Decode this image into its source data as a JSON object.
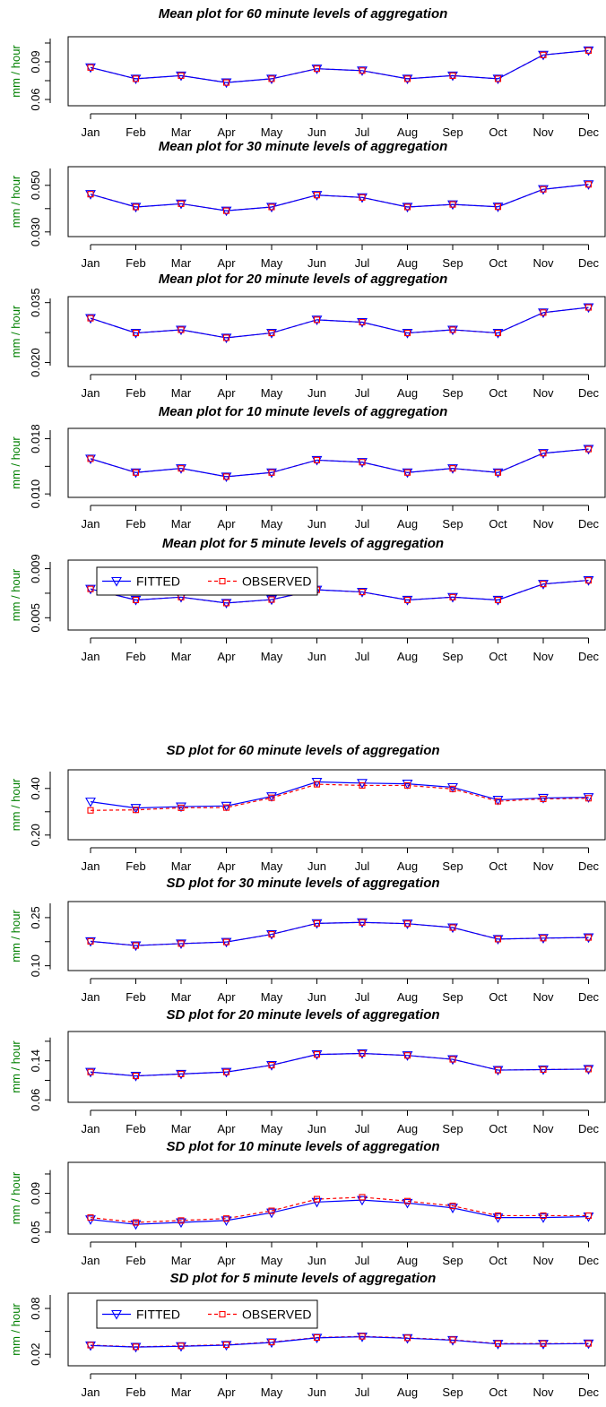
{
  "chart_data": [
    {
      "type": "line",
      "title": "Mean plot for 60 minute levels of aggregation",
      "ylabel": "mm / hour",
      "categories": [
        "Jan",
        "Feb",
        "Mar",
        "Apr",
        "May",
        "Jun",
        "Jul",
        "Aug",
        "Sep",
        "Oct",
        "Nov",
        "Dec"
      ],
      "ylim": [
        0.055,
        0.11
      ],
      "yticks": [
        "0.06",
        "0.09"
      ],
      "ytick_values": [
        0.06,
        0.09
      ],
      "series": [
        {
          "name": "FITTED",
          "values": [
            0.0855,
            0.0765,
            0.079,
            0.0735,
            0.0765,
            0.0845,
            0.083,
            0.0765,
            0.079,
            0.0765,
            0.0955,
            0.099
          ]
        },
        {
          "name": "OBSERVED",
          "values": [
            0.0855,
            0.0765,
            0.079,
            0.0735,
            0.0765,
            0.0845,
            0.083,
            0.0765,
            0.079,
            0.0765,
            0.0955,
            0.099
          ]
        }
      ]
    },
    {
      "type": "line",
      "title": "Mean plot for 30 minute levels of aggregation",
      "ylabel": "mm / hour",
      "categories": [
        "Jan",
        "Feb",
        "Mar",
        "Apr",
        "May",
        "Jun",
        "Jul",
        "Aug",
        "Sep",
        "Oct",
        "Nov",
        "Dec"
      ],
      "ylim": [
        0.028,
        0.058
      ],
      "yticks": [
        "0.030",
        "0.050"
      ],
      "ytick_values": [
        0.03,
        0.05
      ],
      "series": [
        {
          "name": "FITTED",
          "values": [
            0.0462,
            0.0407,
            0.0421,
            0.0391,
            0.0407,
            0.0458,
            0.0448,
            0.0407,
            0.0418,
            0.0408,
            0.0483,
            0.0504
          ]
        },
        {
          "name": "OBSERVED",
          "values": [
            0.0462,
            0.0407,
            0.0421,
            0.0391,
            0.0407,
            0.0458,
            0.0448,
            0.0407,
            0.0418,
            0.0408,
            0.0483,
            0.0504
          ]
        }
      ]
    },
    {
      "type": "line",
      "title": "Mean plot for 20 minute levels of aggregation",
      "ylabel": "mm / hour",
      "categories": [
        "Jan",
        "Feb",
        "Mar",
        "Apr",
        "May",
        "Jun",
        "Jul",
        "Aug",
        "Sep",
        "Oct",
        "Nov",
        "Dec"
      ],
      "ylim": [
        0.019,
        0.0365
      ],
      "yticks": [
        "0.020",
        "0.035"
      ],
      "ytick_values": [
        0.02,
        0.035
      ],
      "series": [
        {
          "name": "FITTED",
          "values": [
            0.0311,
            0.0274,
            0.0282,
            0.0262,
            0.0274,
            0.0307,
            0.0301,
            0.0274,
            0.0282,
            0.0274,
            0.0325,
            0.0338
          ]
        },
        {
          "name": "OBSERVED",
          "values": [
            0.0311,
            0.0274,
            0.0282,
            0.0262,
            0.0274,
            0.0307,
            0.0301,
            0.0274,
            0.0282,
            0.0274,
            0.0325,
            0.0338
          ]
        }
      ]
    },
    {
      "type": "line",
      "title": "Mean plot for 10 minute levels of aggregation",
      "ylabel": "mm / hour",
      "categories": [
        "Jan",
        "Feb",
        "Mar",
        "Apr",
        "May",
        "Jun",
        "Jul",
        "Aug",
        "Sep",
        "Oct",
        "Nov",
        "Dec"
      ],
      "ylim": [
        0.0095,
        0.0195
      ],
      "yticks": [
        "0.010",
        "0.018"
      ],
      "ytick_values": [
        0.01,
        0.018
      ],
      "series": [
        {
          "name": "FITTED",
          "values": [
            0.0151,
            0.0131,
            0.0137,
            0.0125,
            0.0131,
            0.0149,
            0.0146,
            0.0131,
            0.0137,
            0.0131,
            0.0159,
            0.0165
          ]
        },
        {
          "name": "OBSERVED",
          "values": [
            0.0151,
            0.0131,
            0.0137,
            0.0125,
            0.0131,
            0.0149,
            0.0146,
            0.0131,
            0.0137,
            0.0131,
            0.0159,
            0.0165
          ]
        }
      ]
    },
    {
      "type": "line",
      "title": "Mean plot for 5 minute levels of aggregation",
      "ylabel": "mm / hour",
      "categories": [
        "Jan",
        "Feb",
        "Mar",
        "Apr",
        "May",
        "Jun",
        "Jul",
        "Aug",
        "Sep",
        "Oct",
        "Nov",
        "Dec"
      ],
      "ylim": [
        0.004,
        0.0097
      ],
      "yticks": [
        "0.005",
        "0.009"
      ],
      "ytick_values": [
        0.005,
        0.009
      ],
      "legend": "top-left",
      "series": [
        {
          "name": "FITTED",
          "values": [
            0.00735,
            0.00645,
            0.00668,
            0.0062,
            0.00648,
            0.00728,
            0.0071,
            0.00645,
            0.00668,
            0.00645,
            0.00775,
            0.00805
          ]
        },
        {
          "name": "OBSERVED",
          "values": [
            0.00735,
            0.00645,
            0.00668,
            0.0062,
            0.00648,
            0.00728,
            0.0071,
            0.00645,
            0.00668,
            0.00645,
            0.00775,
            0.00805
          ]
        }
      ]
    },
    {
      "type": "line",
      "title": "SD plot for 60 minute levels of aggregation",
      "ylabel": "mm / hour",
      "categories": [
        "Jan",
        "Feb",
        "Mar",
        "Apr",
        "May",
        "Jun",
        "Jul",
        "Aug",
        "Sep",
        "Oct",
        "Nov",
        "Dec"
      ],
      "ylim": [
        0.18,
        0.48
      ],
      "yticks": [
        "0.20",
        "0.40"
      ],
      "ytick_values": [
        0.2,
        0.4
      ],
      "series": [
        {
          "name": "FITTED",
          "values": [
            0.343,
            0.316,
            0.322,
            0.325,
            0.366,
            0.428,
            0.423,
            0.42,
            0.405,
            0.351,
            0.359,
            0.362
          ]
        },
        {
          "name": "OBSERVED",
          "values": [
            0.306,
            0.308,
            0.317,
            0.318,
            0.36,
            0.418,
            0.413,
            0.413,
            0.398,
            0.345,
            0.355,
            0.358
          ]
        }
      ]
    },
    {
      "type": "line",
      "title": "SD plot for 30 minute levels of aggregation",
      "ylabel": "mm / hour",
      "categories": [
        "Jan",
        "Feb",
        "Mar",
        "Apr",
        "May",
        "Jun",
        "Jul",
        "Aug",
        "Sep",
        "Oct",
        "Nov",
        "Dec"
      ],
      "ylim": [
        0.085,
        0.3
      ],
      "yticks": [
        "0.10",
        "0.25"
      ],
      "ytick_values": [
        0.1,
        0.25
      ],
      "series": [
        {
          "name": "FITTED",
          "values": [
            0.176,
            0.163,
            0.169,
            0.174,
            0.198,
            0.232,
            0.235,
            0.231,
            0.219,
            0.183,
            0.186,
            0.188
          ]
        },
        {
          "name": "OBSERVED",
          "values": [
            0.176,
            0.163,
            0.169,
            0.174,
            0.198,
            0.232,
            0.235,
            0.231,
            0.219,
            0.183,
            0.186,
            0.188
          ]
        }
      ]
    },
    {
      "type": "line",
      "title": "SD plot for 20 minute levels of aggregation",
      "ylabel": "mm / hour",
      "categories": [
        "Jan",
        "Feb",
        "Mar",
        "Apr",
        "May",
        "Jun",
        "Jul",
        "Aug",
        "Sep",
        "Oct",
        "Nov",
        "Dec"
      ],
      "ylim": [
        0.055,
        0.2
      ],
      "yticks": [
        "0.06",
        "0.14"
      ],
      "ytick_values": [
        0.06,
        0.14
      ],
      "series": [
        {
          "name": "FITTED",
          "values": [
            0.117,
            0.109,
            0.113,
            0.117,
            0.131,
            0.153,
            0.155,
            0.151,
            0.143,
            0.121,
            0.122,
            0.123
          ]
        },
        {
          "name": "OBSERVED",
          "values": [
            0.117,
            0.109,
            0.113,
            0.117,
            0.131,
            0.153,
            0.155,
            0.151,
            0.143,
            0.121,
            0.122,
            0.123
          ]
        }
      ]
    },
    {
      "type": "line",
      "title": "SD plot for 10 minute levels of aggregation",
      "ylabel": "mm / hour",
      "categories": [
        "Jan",
        "Feb",
        "Mar",
        "Apr",
        "May",
        "Jun",
        "Jul",
        "Aug",
        "Sep",
        "Oct",
        "Nov",
        "Dec"
      ],
      "ylim": [
        0.048,
        0.122
      ],
      "yticks": [
        "0.05",
        "0.09"
      ],
      "ytick_values": [
        0.05,
        0.09
      ],
      "series": [
        {
          "name": "FITTED",
          "values": [
            0.063,
            0.058,
            0.06,
            0.062,
            0.07,
            0.081,
            0.083,
            0.08,
            0.075,
            0.065,
            0.065,
            0.066
          ]
        },
        {
          "name": "OBSERVED",
          "values": [
            0.065,
            0.06,
            0.062,
            0.064,
            0.072,
            0.084,
            0.086,
            0.082,
            0.077,
            0.067,
            0.067,
            0.067
          ]
        }
      ]
    },
    {
      "type": "line",
      "title": "SD plot for 5 minute levels of aggregation",
      "ylabel": "mm / hour",
      "categories": [
        "Jan",
        "Feb",
        "Mar",
        "Apr",
        "May",
        "Jun",
        "Jul",
        "Aug",
        "Sep",
        "Oct",
        "Nov",
        "Dec"
      ],
      "ylim": [
        0.005,
        0.1
      ],
      "yticks": [
        "0.02",
        "0.08"
      ],
      "ytick_values": [
        0.02,
        0.08
      ],
      "legend": "top-left",
      "series": [
        {
          "name": "FITTED",
          "values": [
            0.0315,
            0.0295,
            0.0305,
            0.032,
            0.0355,
            0.0415,
            0.043,
            0.041,
            0.0385,
            0.0335,
            0.0335,
            0.034
          ]
        },
        {
          "name": "OBSERVED",
          "values": [
            0.032,
            0.0298,
            0.031,
            0.0325,
            0.036,
            0.042,
            0.0435,
            0.0415,
            0.039,
            0.034,
            0.034,
            0.0342
          ]
        }
      ]
    }
  ],
  "legend": {
    "fitted_label": "FITTED",
    "observed_label": "OBSERVED"
  },
  "colors": {
    "fitted": "#0000ff",
    "observed": "#ff0000",
    "ylabel": "#008000"
  }
}
